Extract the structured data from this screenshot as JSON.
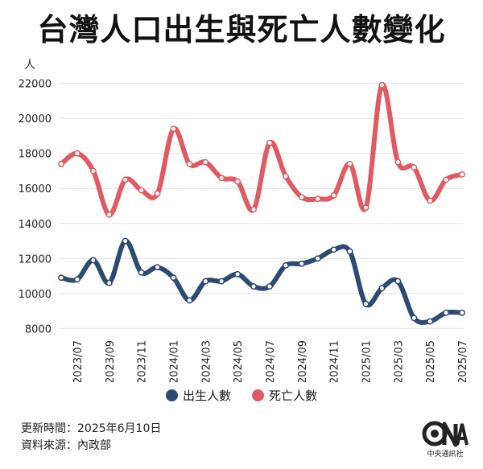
{
  "title": "台灣人口出生與死亡人數變化",
  "chart_data": {
    "type": "line",
    "unit_label": "人",
    "x": [
      "2023/06",
      "2023/07",
      "2023/08",
      "2023/09",
      "2023/10",
      "2023/11",
      "2023/12",
      "2024/01",
      "2024/02",
      "2024/03",
      "2024/04",
      "2024/05",
      "2024/06",
      "2024/07",
      "2024/08",
      "2024/09",
      "2024/10",
      "2024/11",
      "2024/12",
      "2025/01",
      "2025/02",
      "2025/03",
      "2025/04",
      "2025/05",
      "2025/06",
      "2025/07"
    ],
    "x_tick_labels": [
      "2023/07",
      "2023/09",
      "2023/11",
      "2024/01",
      "2024/03",
      "2024/05",
      "2024/07",
      "2024/09",
      "2024/11",
      "2025/01",
      "2025/03",
      "2025/05",
      "2025/07"
    ],
    "y_ticks": [
      8000,
      10000,
      12000,
      14000,
      16000,
      18000,
      20000,
      22000
    ],
    "ylim": [
      7600,
      22400
    ],
    "grid": "horizontal",
    "series": [
      {
        "name": "出生人數",
        "color": "#2d4a73",
        "values": [
          10900,
          10800,
          11900,
          10600,
          13000,
          11200,
          11500,
          10900,
          9600,
          10700,
          10700,
          11100,
          10400,
          10400,
          11600,
          11700,
          12000,
          12500,
          12400,
          9400,
          10300,
          10700,
          8600,
          8400,
          8900,
          8900
        ]
      },
      {
        "name": "死亡人數",
        "color": "#e05a62",
        "values": [
          17400,
          18000,
          17000,
          14500,
          16500,
          15900,
          15700,
          19400,
          17400,
          17500,
          16600,
          16400,
          14800,
          18600,
          16700,
          15500,
          15400,
          15600,
          17400,
          14900,
          21900,
          17500,
          17200,
          15300,
          16500,
          16800
        ]
      }
    ]
  },
  "legend": {
    "items": [
      {
        "label": "出生人數",
        "color": "#2d4a73"
      },
      {
        "label": "死亡人數",
        "color": "#e05a62"
      }
    ]
  },
  "footer": {
    "updated": "更新時間：2025年6月10日",
    "source": "資料來源：內政部"
  },
  "logo": {
    "text": "中央通訊社"
  }
}
